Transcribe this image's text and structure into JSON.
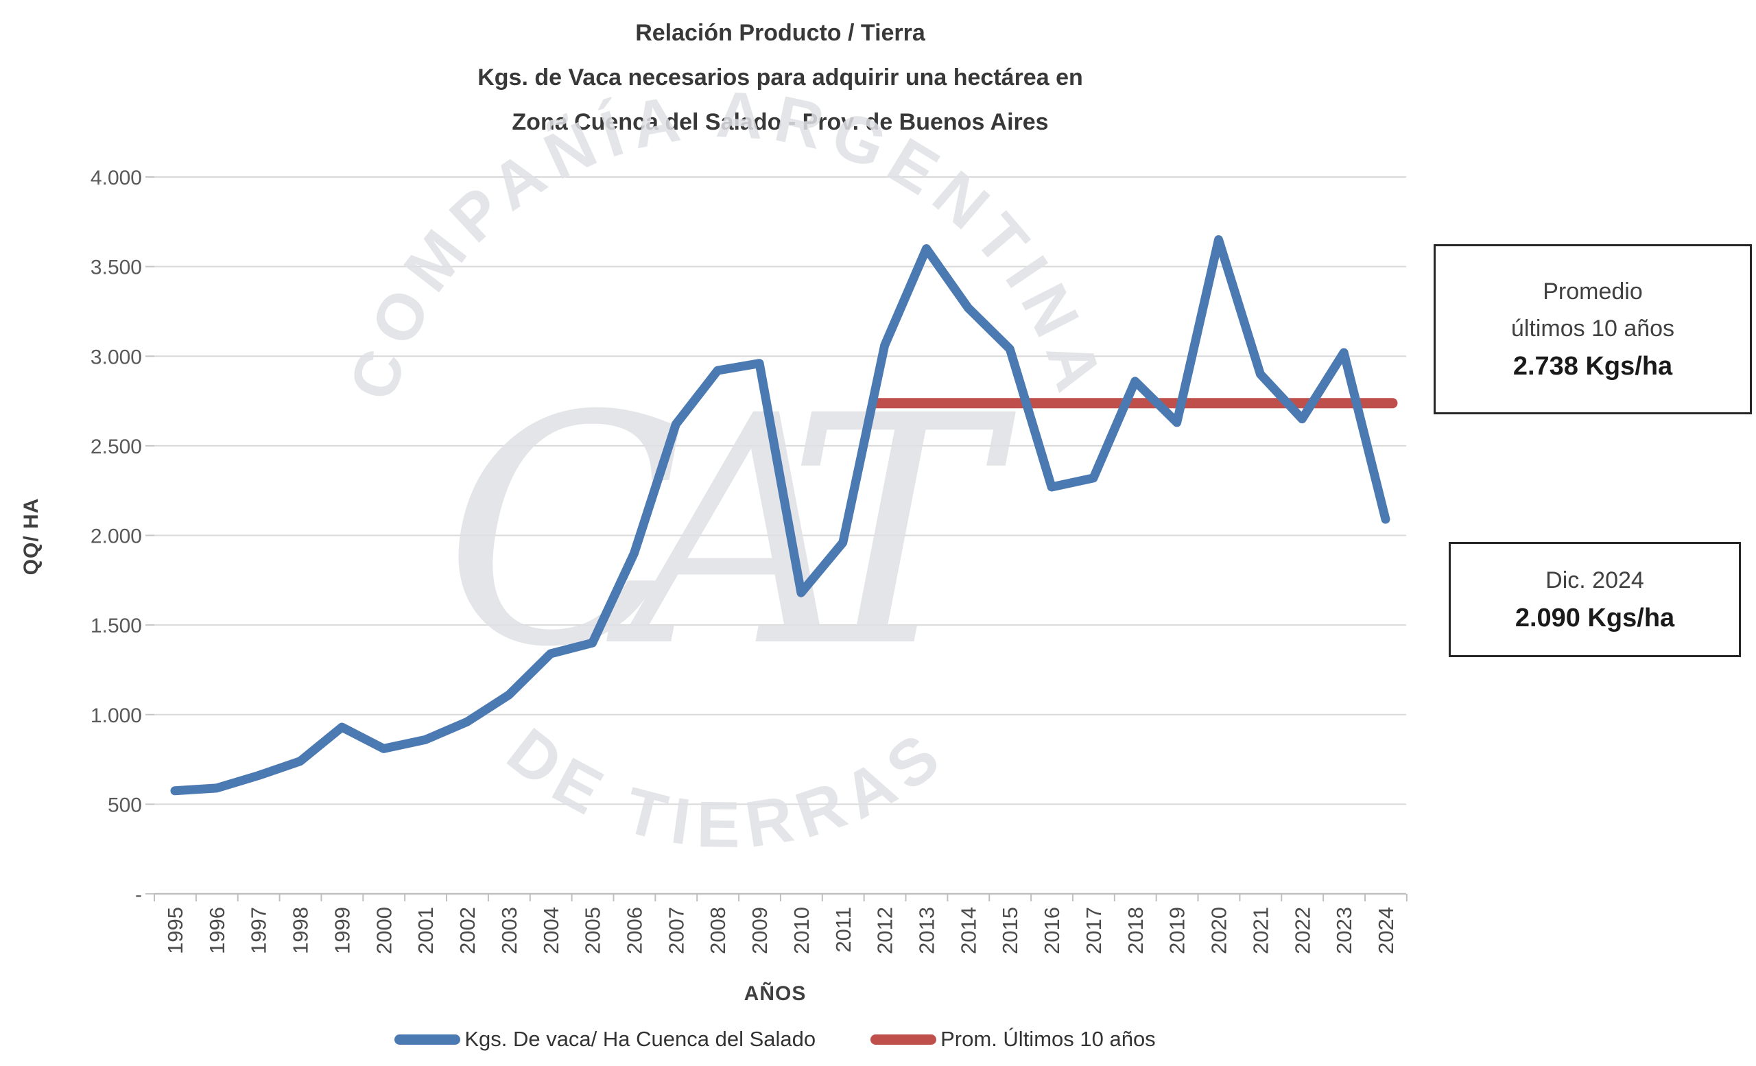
{
  "title": {
    "line1": "Relación Producto / Tierra",
    "line2": "Kgs. de Vaca necesarios para adquirir una hectárea en",
    "line3": "Zona Cuenca del Salado - Prov. de Buenos Aires"
  },
  "watermark": {
    "arc_top": "COMPAÑÍA ARGENTINA",
    "arc_bottom": "DE TIERRAS",
    "monogram": "CAT"
  },
  "annotations": {
    "avg_box": {
      "line1": "Promedio",
      "line2": "últimos 10 años",
      "value": "2.738 Kgs/ha"
    },
    "dec_box": {
      "line1": "Dic. 2024",
      "value": "2.090 Kgs/ha"
    }
  },
  "legend": {
    "items": [
      {
        "label": "Kgs. De vaca/ Ha Cuenca del Salado",
        "color": "#4b79b2"
      },
      {
        "label": "Prom. Últimos 10 años",
        "color": "#bf4f4b"
      }
    ]
  },
  "chart_data": {
    "type": "line",
    "title": "Relación Producto / Tierra — Kgs. de Vaca necesarios para adquirir una hectárea en Zona Cuenca del Salado - Prov. de Buenos Aires",
    "xlabel": "AÑOS",
    "ylabel": "QQ/ HA",
    "ylim": [
      0,
      4000
    ],
    "grid": "horizontal",
    "legend_position": "bottom",
    "yticks": [
      0,
      500,
      1000,
      1500,
      2000,
      2500,
      3000,
      3500,
      4000
    ],
    "ytick_labels": [
      "-",
      "500",
      "1.000",
      "1.500",
      "2.000",
      "2.500",
      "3.000",
      "3.500",
      "4.000"
    ],
    "categories": [
      "1995",
      "1996",
      "1997",
      "1998",
      "1999",
      "2000",
      "2001",
      "2002",
      "2003",
      "2004",
      "2005",
      "2006",
      "2007",
      "2008",
      "2009",
      "2010",
      "2011",
      "2012",
      "2013",
      "2014",
      "2015",
      "2016",
      "2017",
      "2018",
      "2019",
      "2020",
      "2021",
      "2022",
      "2023",
      "2024"
    ],
    "series": [
      {
        "name": "Kgs. De vaca/ Ha Cuenca del Salado",
        "type": "line",
        "color": "#4b79b2",
        "values": [
          575,
          590,
          660,
          740,
          930,
          810,
          860,
          960,
          1110,
          1340,
          1400,
          1900,
          2620,
          2920,
          2960,
          1680,
          1960,
          3060,
          3600,
          3270,
          3040,
          2270,
          2320,
          2860,
          2630,
          3650,
          2900,
          2650,
          3020,
          2090
        ]
      },
      {
        "name": "Prom. Últimos 10 años",
        "type": "constant-line",
        "color": "#bf4f4b",
        "value": 2738,
        "from": "2012",
        "to": "2024"
      }
    ]
  }
}
